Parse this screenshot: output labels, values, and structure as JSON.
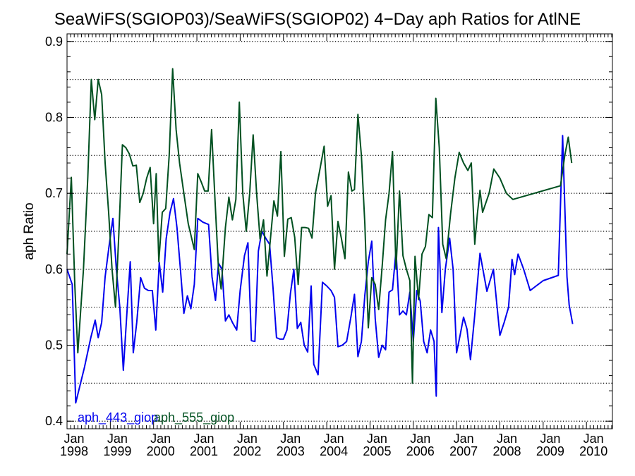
{
  "chart_data": {
    "type": "line",
    "title": "SeaWiFS(SGIOP03)/SeaWiFS(SGIOP02) 4−Day aph Ratios for AtlNE",
    "xlabel": "",
    "ylabel": "aph Ratio",
    "xlim": [
      1998.0,
      2010.6
    ],
    "ylim": [
      0.39,
      0.91
    ],
    "y_ticks": [
      "0.4",
      "0.5",
      "0.6",
      "0.7",
      "0.8",
      "0.9"
    ],
    "x_ticks": [
      {
        "month": "Jan",
        "year": "1998",
        "x": 1998
      },
      {
        "month": "Jan",
        "year": "1999",
        "x": 1999
      },
      {
        "month": "Jan",
        "year": "2000",
        "x": 2000
      },
      {
        "month": "Jan",
        "year": "2001",
        "x": 2001
      },
      {
        "month": "Jan",
        "year": "2002",
        "x": 2002
      },
      {
        "month": "Jan",
        "year": "2003",
        "x": 2003
      },
      {
        "month": "Jan",
        "year": "2004",
        "x": 2004
      },
      {
        "month": "Jan",
        "year": "2005",
        "x": 2005
      },
      {
        "month": "Jan",
        "year": "2006",
        "x": 2006
      },
      {
        "month": "Jan",
        "year": "2007",
        "x": 2007
      },
      {
        "month": "Jan",
        "year": "2008",
        "x": 2008
      },
      {
        "month": "Jan",
        "year": "2009",
        "x": 2009
      },
      {
        "month": "Jan",
        "year": "2010",
        "x": 2010
      }
    ],
    "dotted_grid_y": [
      0.4,
      0.45,
      0.5,
      0.55,
      0.6,
      0.65,
      0.7,
      0.75,
      0.8,
      0.85,
      0.9
    ],
    "legend_placement": "bottom-left",
    "series": [
      {
        "name": "aph_443_giop",
        "color": "#0000ee",
        "points": [
          [
            1998.0,
            0.6
          ],
          [
            1998.12,
            0.58
          ],
          [
            1998.2,
            0.424
          ],
          [
            1998.4,
            0.47
          ],
          [
            1998.55,
            0.51
          ],
          [
            1998.65,
            0.533
          ],
          [
            1998.72,
            0.51
          ],
          [
            1998.8,
            0.53
          ],
          [
            1998.88,
            0.59
          ],
          [
            1998.97,
            0.63
          ],
          [
            1999.06,
            0.667
          ],
          [
            1999.14,
            0.6
          ],
          [
            1999.22,
            0.55
          ],
          [
            1999.3,
            0.467
          ],
          [
            1999.38,
            0.54
          ],
          [
            1999.46,
            0.61
          ],
          [
            1999.53,
            0.49
          ],
          [
            1999.61,
            0.53
          ],
          [
            1999.7,
            0.589
          ],
          [
            1999.79,
            0.575
          ],
          [
            1999.88,
            0.572
          ],
          [
            1999.97,
            0.572
          ],
          [
            2000.05,
            0.52
          ],
          [
            2000.13,
            0.609
          ],
          [
            2000.21,
            0.57
          ],
          [
            2000.29,
            0.64
          ],
          [
            2000.38,
            0.675
          ],
          [
            2000.46,
            0.693
          ],
          [
            2000.54,
            0.655
          ],
          [
            2000.62,
            0.6
          ],
          [
            2000.7,
            0.542
          ],
          [
            2000.78,
            0.565
          ],
          [
            2000.86,
            0.548
          ],
          [
            2000.94,
            0.58
          ],
          [
            2001.02,
            0.667
          ],
          [
            2001.14,
            0.662
          ],
          [
            2001.27,
            0.659
          ],
          [
            2001.35,
            0.59
          ],
          [
            2001.43,
            0.559
          ],
          [
            2001.5,
            0.608
          ],
          [
            2001.58,
            0.6
          ],
          [
            2001.66,
            0.532
          ],
          [
            2001.74,
            0.54
          ],
          [
            2001.82,
            0.53
          ],
          [
            2001.92,
            0.52
          ],
          [
            2002.0,
            0.572
          ],
          [
            2002.1,
            0.618
          ],
          [
            2002.18,
            0.635
          ],
          [
            2002.26,
            0.506
          ],
          [
            2002.34,
            0.505
          ],
          [
            2002.42,
            0.624
          ],
          [
            2002.5,
            0.65
          ],
          [
            2002.6,
            0.64
          ],
          [
            2002.68,
            0.633
          ],
          [
            2002.76,
            0.575
          ],
          [
            2002.84,
            0.51
          ],
          [
            2002.92,
            0.508
          ],
          [
            2003.0,
            0.508
          ],
          [
            2003.08,
            0.52
          ],
          [
            2003.16,
            0.568
          ],
          [
            2003.24,
            0.6
          ],
          [
            2003.32,
            0.522
          ],
          [
            2003.4,
            0.53
          ],
          [
            2003.48,
            0.5
          ],
          [
            2003.56,
            0.491
          ],
          [
            2003.64,
            0.578
          ],
          [
            2003.7,
            0.475
          ],
          [
            2003.8,
            0.461
          ],
          [
            2003.9,
            0.583
          ],
          [
            2004.0,
            0.578
          ],
          [
            2004.1,
            0.572
          ],
          [
            2004.18,
            0.563
          ],
          [
            2004.26,
            0.498
          ],
          [
            2004.36,
            0.5
          ],
          [
            2004.46,
            0.505
          ],
          [
            2004.56,
            0.538
          ],
          [
            2004.64,
            0.567
          ],
          [
            2004.72,
            0.485
          ],
          [
            2004.8,
            0.505
          ],
          [
            2004.88,
            0.566
          ],
          [
            2004.96,
            0.61
          ],
          [
            2005.04,
            0.637
          ],
          [
            2005.12,
            0.535
          ],
          [
            2005.2,
            0.484
          ],
          [
            2005.28,
            0.5
          ],
          [
            2005.36,
            0.494
          ],
          [
            2005.44,
            0.57
          ],
          [
            2005.52,
            0.573
          ],
          [
            2005.6,
            0.625
          ],
          [
            2005.68,
            0.54
          ],
          [
            2005.76,
            0.545
          ],
          [
            2005.84,
            0.54
          ],
          [
            2005.92,
            0.57
          ],
          [
            2006.0,
            0.505
          ],
          [
            2006.08,
            0.572
          ],
          [
            2006.16,
            0.558
          ],
          [
            2006.24,
            0.505
          ],
          [
            2006.32,
            0.49
          ],
          [
            2006.4,
            0.52
          ],
          [
            2006.48,
            0.505
          ],
          [
            2006.53,
            0.433
          ],
          [
            2006.58,
            0.655
          ],
          [
            2006.66,
            0.543
          ],
          [
            2006.74,
            0.6
          ],
          [
            2006.84,
            0.641
          ],
          [
            2006.92,
            0.6
          ],
          [
            2007.0,
            0.49
          ],
          [
            2007.08,
            0.513
          ],
          [
            2007.16,
            0.537
          ],
          [
            2007.24,
            0.521
          ],
          [
            2007.32,
            0.481
          ],
          [
            2007.42,
            0.54
          ],
          [
            2007.54,
            0.621
          ],
          [
            2007.7,
            0.571
          ],
          [
            2007.85,
            0.6
          ],
          [
            2008.0,
            0.513
          ],
          [
            2008.1,
            0.53
          ],
          [
            2008.2,
            0.55
          ],
          [
            2008.28,
            0.613
          ],
          [
            2008.34,
            0.593
          ],
          [
            2008.42,
            0.62
          ],
          [
            2008.55,
            0.6
          ],
          [
            2008.7,
            0.572
          ],
          [
            2009.0,
            0.585
          ],
          [
            2009.35,
            0.592
          ],
          [
            2009.45,
            0.776
          ],
          [
            2009.55,
            0.59
          ],
          [
            2009.6,
            0.553
          ],
          [
            2009.68,
            0.528
          ]
        ]
      },
      {
        "name": "aph_555_giop",
        "color": "#005020",
        "points": [
          [
            1998.0,
            0.62
          ],
          [
            1998.1,
            0.721
          ],
          [
            1998.18,
            0.58
          ],
          [
            1998.25,
            0.49
          ],
          [
            1998.38,
            0.6
          ],
          [
            1998.48,
            0.72
          ],
          [
            1998.56,
            0.85
          ],
          [
            1998.64,
            0.797
          ],
          [
            1998.72,
            0.85
          ],
          [
            1998.8,
            0.83
          ],
          [
            1998.88,
            0.74
          ],
          [
            1998.96,
            0.676
          ],
          [
            1999.04,
            0.6
          ],
          [
            1999.12,
            0.55
          ],
          [
            1999.2,
            0.65
          ],
          [
            1999.28,
            0.764
          ],
          [
            1999.36,
            0.76
          ],
          [
            1999.44,
            0.752
          ],
          [
            1999.52,
            0.736
          ],
          [
            1999.6,
            0.737
          ],
          [
            1999.68,
            0.688
          ],
          [
            1999.76,
            0.7
          ],
          [
            1999.84,
            0.72
          ],
          [
            1999.92,
            0.734
          ],
          [
            2000.0,
            0.66
          ],
          [
            2000.06,
            0.726
          ],
          [
            2000.12,
            0.61
          ],
          [
            2000.2,
            0.675
          ],
          [
            2000.28,
            0.68
          ],
          [
            2000.36,
            0.75
          ],
          [
            2000.44,
            0.864
          ],
          [
            2000.52,
            0.784
          ],
          [
            2000.6,
            0.74
          ],
          [
            2000.7,
            0.7
          ],
          [
            2000.8,
            0.66
          ],
          [
            2000.94,
            0.626
          ],
          [
            2001.02,
            0.726
          ],
          [
            2001.1,
            0.715
          ],
          [
            2001.18,
            0.703
          ],
          [
            2001.26,
            0.703
          ],
          [
            2001.34,
            0.784
          ],
          [
            2001.42,
            0.69
          ],
          [
            2001.5,
            0.6
          ],
          [
            2001.56,
            0.574
          ],
          [
            2001.66,
            0.655
          ],
          [
            2001.74,
            0.695
          ],
          [
            2001.82,
            0.665
          ],
          [
            2001.9,
            0.692
          ],
          [
            2001.98,
            0.82
          ],
          [
            2002.06,
            0.7
          ],
          [
            2002.14,
            0.65
          ],
          [
            2002.22,
            0.7
          ],
          [
            2002.3,
            0.777
          ],
          [
            2002.38,
            0.7
          ],
          [
            2002.46,
            0.64
          ],
          [
            2002.54,
            0.665
          ],
          [
            2002.62,
            0.591
          ],
          [
            2002.7,
            0.64
          ],
          [
            2002.78,
            0.69
          ],
          [
            2002.86,
            0.67
          ],
          [
            2002.94,
            0.755
          ],
          [
            2003.02,
            0.617
          ],
          [
            2003.1,
            0.666
          ],
          [
            2003.18,
            0.668
          ],
          [
            2003.26,
            0.642
          ],
          [
            2003.34,
            0.58
          ],
          [
            2003.42,
            0.655
          ],
          [
            2003.5,
            0.655
          ],
          [
            2003.58,
            0.654
          ],
          [
            2003.66,
            0.641
          ],
          [
            2003.74,
            0.7
          ],
          [
            2003.84,
            0.731
          ],
          [
            2003.94,
            0.762
          ],
          [
            2004.02,
            0.683
          ],
          [
            2004.1,
            0.697
          ],
          [
            2004.18,
            0.6
          ],
          [
            2004.26,
            0.663
          ],
          [
            2004.34,
            0.64
          ],
          [
            2004.42,
            0.614
          ],
          [
            2004.5,
            0.728
          ],
          [
            2004.58,
            0.703
          ],
          [
            2004.64,
            0.705
          ],
          [
            2004.72,
            0.804
          ],
          [
            2004.8,
            0.75
          ],
          [
            2004.88,
            0.66
          ],
          [
            2004.96,
            0.523
          ],
          [
            2005.04,
            0.589
          ],
          [
            2005.12,
            0.58
          ],
          [
            2005.2,
            0.547
          ],
          [
            2005.28,
            0.603
          ],
          [
            2005.36,
            0.665
          ],
          [
            2005.44,
            0.7
          ],
          [
            2005.52,
            0.755
          ],
          [
            2005.6,
            0.6
          ],
          [
            2005.68,
            0.703
          ],
          [
            2005.76,
            0.618
          ],
          [
            2005.84,
            0.6
          ],
          [
            2005.92,
            0.585
          ],
          [
            2005.98,
            0.45
          ],
          [
            2006.04,
            0.617
          ],
          [
            2006.12,
            0.56
          ],
          [
            2006.2,
            0.62
          ],
          [
            2006.28,
            0.63
          ],
          [
            2006.36,
            0.672
          ],
          [
            2006.44,
            0.668
          ],
          [
            2006.52,
            0.825
          ],
          [
            2006.6,
            0.76
          ],
          [
            2006.68,
            0.633
          ],
          [
            2006.76,
            0.614
          ],
          [
            2006.86,
            0.673
          ],
          [
            2006.96,
            0.72
          ],
          [
            2007.06,
            0.754
          ],
          [
            2007.16,
            0.74
          ],
          [
            2007.26,
            0.73
          ],
          [
            2007.34,
            0.74
          ],
          [
            2007.42,
            0.633
          ],
          [
            2007.48,
            0.673
          ],
          [
            2007.54,
            0.704
          ],
          [
            2007.6,
            0.675
          ],
          [
            2007.75,
            0.7
          ],
          [
            2007.86,
            0.732
          ],
          [
            2008.0,
            0.72
          ],
          [
            2008.15,
            0.7
          ],
          [
            2008.3,
            0.692
          ],
          [
            2009.4,
            0.71
          ],
          [
            2009.5,
            0.75
          ],
          [
            2009.58,
            0.774
          ],
          [
            2009.66,
            0.74
          ]
        ]
      }
    ]
  }
}
